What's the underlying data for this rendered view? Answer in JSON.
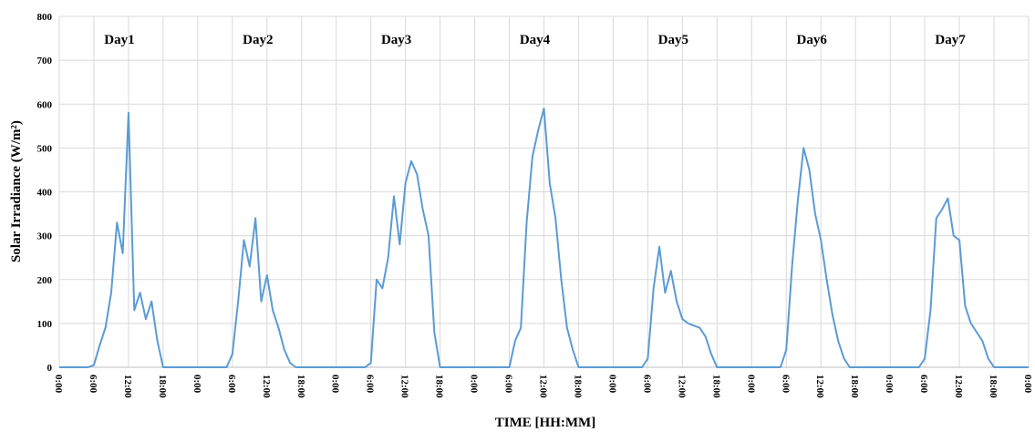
{
  "chart_data": {
    "type": "line",
    "days": [
      "Day1",
      "Day2",
      "Day3",
      "Day4",
      "Day5",
      "Day6",
      "Day7"
    ],
    "x_label": "TIME [HH:MM]",
    "y_label": "Solar Irradiance (W/m²)",
    "x": [
      0,
      1,
      2,
      3,
      4,
      5,
      6,
      7,
      8,
      9,
      10,
      11,
      12,
      13,
      14,
      15,
      16,
      17,
      18,
      19,
      20,
      21,
      22,
      23,
      24,
      25,
      26,
      27,
      28,
      29,
      30,
      31,
      32,
      33,
      34,
      35,
      36,
      37,
      38,
      39,
      40,
      41,
      42,
      43,
      44,
      45,
      46,
      47,
      48,
      49,
      50,
      51,
      52,
      53,
      54,
      55,
      56,
      57,
      58,
      59,
      60,
      61,
      62,
      63,
      64,
      65,
      66,
      67,
      68,
      69,
      70,
      71,
      72,
      73,
      74,
      75,
      76,
      77,
      78,
      79,
      80,
      81,
      82,
      83,
      84,
      85,
      86,
      87,
      88,
      89,
      90,
      91,
      92,
      93,
      94,
      95,
      96,
      97,
      98,
      99,
      100,
      101,
      102,
      103,
      104,
      105,
      106,
      107,
      108,
      109,
      110,
      111,
      112,
      113,
      114,
      115,
      116,
      117,
      118,
      119,
      120,
      121,
      122,
      123,
      124,
      125,
      126,
      127,
      128,
      129,
      130,
      131,
      132,
      133,
      134,
      135,
      136,
      137,
      138,
      139,
      140,
      141,
      142,
      143,
      144,
      145,
      146,
      147,
      148,
      149,
      150,
      151,
      152,
      153,
      154,
      155,
      156,
      157,
      158,
      159,
      160,
      161,
      162,
      163,
      164,
      165,
      166,
      167,
      168
    ],
    "series": [
      {
        "color": "#5b9bd5",
        "values": [
          0,
          0,
          0,
          0,
          0,
          0,
          5,
          50,
          90,
          170,
          330,
          260,
          580,
          130,
          170,
          110,
          150,
          60,
          0,
          0,
          0,
          0,
          0,
          0,
          0,
          0,
          0,
          0,
          0,
          0,
          30,
          150,
          290,
          230,
          340,
          150,
          210,
          130,
          90,
          40,
          10,
          0,
          0,
          0,
          0,
          0,
          0,
          0,
          0,
          0,
          0,
          0,
          0,
          0,
          10,
          200,
          180,
          250,
          390,
          280,
          420,
          470,
          440,
          360,
          300,
          80,
          0,
          0,
          0,
          0,
          0,
          0,
          0,
          0,
          0,
          0,
          0,
          0,
          0,
          60,
          90,
          330,
          480,
          540,
          590,
          420,
          340,
          200,
          90,
          40,
          0,
          0,
          0,
          0,
          0,
          0,
          0,
          0,
          0,
          0,
          0,
          0,
          20,
          180,
          275,
          170,
          220,
          150,
          110,
          100,
          95,
          90,
          70,
          30,
          0,
          0,
          0,
          0,
          0,
          0,
          0,
          0,
          0,
          0,
          0,
          0,
          40,
          230,
          380,
          500,
          450,
          350,
          290,
          200,
          120,
          60,
          20,
          0,
          0,
          0,
          0,
          0,
          0,
          0,
          0,
          0,
          0,
          0,
          0,
          0,
          20,
          130,
          340,
          360,
          385,
          300,
          290,
          140,
          100,
          80,
          60,
          20,
          0,
          0,
          0,
          0,
          0,
          0,
          0
        ]
      }
    ],
    "xlim": [
      0,
      168
    ],
    "xticks": [
      {
        "value": 0,
        "label": "0:00"
      },
      {
        "value": 6,
        "label": "6:00"
      },
      {
        "value": 12,
        "label": "12:00"
      },
      {
        "value": 18,
        "label": "18:00"
      },
      {
        "value": 24,
        "label": "0:00"
      },
      {
        "value": 30,
        "label": "6:00"
      },
      {
        "value": 36,
        "label": "12:00"
      },
      {
        "value": 42,
        "label": "18:00"
      },
      {
        "value": 48,
        "label": "0:00"
      },
      {
        "value": 54,
        "label": "6:00"
      },
      {
        "value": 60,
        "label": "12:00"
      },
      {
        "value": 66,
        "label": "18:00"
      },
      {
        "value": 72,
        "label": "0:00"
      },
      {
        "value": 78,
        "label": "6:00"
      },
      {
        "value": 84,
        "label": "12:00"
      },
      {
        "value": 90,
        "label": "18:00"
      },
      {
        "value": 96,
        "label": "0:00"
      },
      {
        "value": 102,
        "label": "6:00"
      },
      {
        "value": 108,
        "label": "12:00"
      },
      {
        "value": 114,
        "label": "18:00"
      },
      {
        "value": 120,
        "label": "0:00"
      },
      {
        "value": 126,
        "label": "6:00"
      },
      {
        "value": 132,
        "label": "12:00"
      },
      {
        "value": 138,
        "label": "18:00"
      },
      {
        "value": 144,
        "label": "0:00"
      },
      {
        "value": 150,
        "label": "6:00"
      },
      {
        "value": 156,
        "label": "12:00"
      },
      {
        "value": 162,
        "label": "18:00"
      },
      {
        "value": 168,
        "label": "0:00"
      }
    ],
    "ylim": [
      0,
      800
    ],
    "yticks": [
      0,
      100,
      200,
      300,
      400,
      500,
      600,
      700,
      800
    ],
    "grid": true
  }
}
